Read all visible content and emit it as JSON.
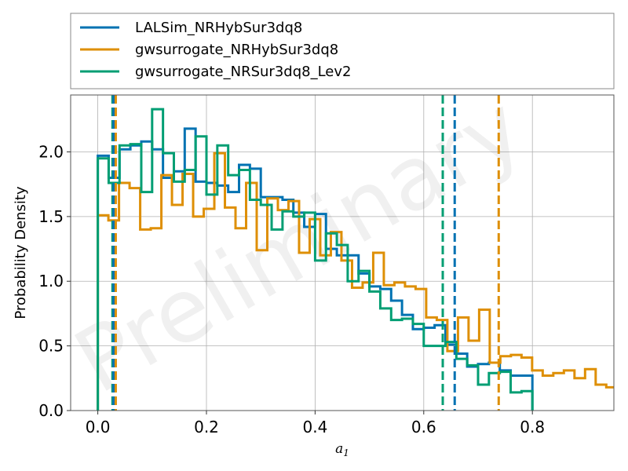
{
  "chart_data": {
    "type": "step-histogram",
    "title": "",
    "xlabel": "a_1",
    "ylabel": "Probability Density",
    "xlim": [
      -0.05,
      0.95
    ],
    "ylim": [
      0.0,
      2.44
    ],
    "xticks": [
      0.0,
      0.2,
      0.4,
      0.6,
      0.8
    ],
    "xtick_labels": [
      "0.0",
      "0.2",
      "0.4",
      "0.6",
      "0.8"
    ],
    "yticks": [
      0.0,
      0.5,
      1.0,
      1.5,
      2.0
    ],
    "ytick_labels": [
      "0.0",
      "0.5",
      "1.0",
      "1.5",
      "2.0"
    ],
    "grid": true,
    "legend_position": "above plot",
    "watermark": "Preliminary",
    "series": [
      {
        "name": "LALSim_NRHybSur3dq8",
        "color": "#0072b2",
        "bin_start": 0.0,
        "bin_width": 0.02,
        "values": [
          1.97,
          1.8,
          2.02,
          2.05,
          2.08,
          2.02,
          1.8,
          1.85,
          2.18,
          1.77,
          1.76,
          1.74,
          1.69,
          1.9,
          1.87,
          1.65,
          1.65,
          1.63,
          1.53,
          1.42,
          1.52,
          1.25,
          1.2,
          1.2,
          1.06,
          0.96,
          0.94,
          0.85,
          0.74,
          0.63,
          0.64,
          0.66,
          0.51,
          0.44,
          0.34,
          0.36,
          0.37,
          0.31,
          0.27,
          0.27
        ],
        "vline": 0.657
      },
      {
        "name": "gwsurrogate_NRHybSur3dq8",
        "color": "#de8f05",
        "bin_start": 0.0,
        "bin_width": 0.0195,
        "values": [
          1.51,
          1.47,
          1.76,
          1.72,
          1.4,
          1.41,
          1.82,
          1.59,
          1.83,
          1.5,
          1.56,
          1.99,
          1.57,
          1.41,
          1.76,
          1.24,
          1.64,
          1.55,
          1.62,
          1.22,
          1.48,
          1.2,
          1.38,
          1.16,
          0.95,
          0.99,
          1.22,
          0.97,
          0.99,
          0.96,
          0.94,
          0.72,
          0.7,
          0.46,
          0.72,
          0.54,
          0.78,
          0.37,
          0.42,
          0.43,
          0.41,
          0.31,
          0.27,
          0.29,
          0.31,
          0.25,
          0.32,
          0.2,
          0.18
        ],
        "vline": 0.738
      },
      {
        "name": "gwsurrogate_NRSur3dq8_Lev2",
        "color": "#029e73",
        "bin_start": 0.0,
        "bin_width": 0.02,
        "values": [
          1.95,
          1.76,
          2.05,
          2.06,
          1.69,
          2.33,
          1.99,
          1.77,
          1.86,
          2.12,
          1.67,
          2.05,
          1.82,
          1.86,
          1.63,
          1.59,
          1.4,
          1.54,
          1.5,
          1.53,
          1.16,
          1.37,
          1.28,
          1.0,
          1.08,
          0.92,
          0.79,
          0.7,
          0.71,
          0.67,
          0.5,
          0.5,
          0.53,
          0.4,
          0.35,
          0.2,
          0.29,
          0.3,
          0.14,
          0.15
        ],
        "vline": 0.635
      }
    ],
    "left_vlines": [
      {
        "series": "gwsurrogate_NRSur3dq8_Lev2",
        "x": 0.027
      },
      {
        "series": "LALSim_NRHybSur3dq8",
        "x": 0.029
      },
      {
        "series": "gwsurrogate_NRHybSur3dq8",
        "x": 0.033
      }
    ]
  }
}
